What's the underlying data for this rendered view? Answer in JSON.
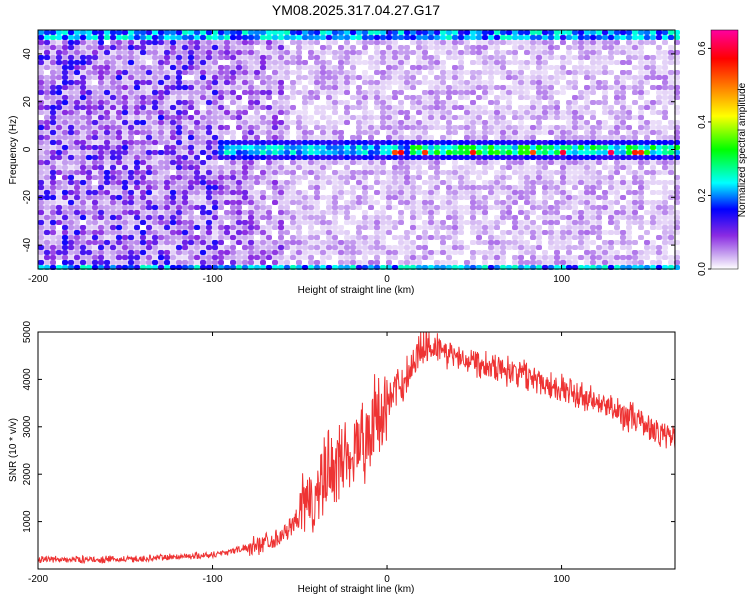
{
  "chart_data": [
    {
      "type": "heatmap",
      "title": "YM08.2025.317.04.27.G17",
      "xlabel": "Height of straight line (km)",
      "ylabel": "Frequency (Hz)",
      "xlim": [
        -200,
        165
      ],
      "ylim": [
        -50,
        50
      ],
      "xticks": [
        -200,
        -100,
        0,
        100
      ],
      "xtick_labels": [
        "-200",
        "-100",
        "0",
        "100"
      ],
      "yticks": [
        -40,
        -20,
        0,
        20,
        40
      ],
      "ytick_labels": [
        "-40",
        "-20",
        "0",
        "20",
        "40"
      ],
      "colorbar": {
        "label": "Normalized spectral amplitude",
        "range": [
          0,
          0.65
        ],
        "ticks": [
          0,
          0.2,
          0.4,
          0.6
        ],
        "tick_labels": [
          "0.0",
          "0.2",
          "0.4",
          "0.6"
        ],
        "colors": [
          "#ffffff",
          "#8a2be2",
          "#0000ff",
          "#00ffff",
          "#00ff00",
          "#ffff00",
          "#ff8000",
          "#ff0000",
          "#ff00a0"
        ]
      },
      "features": [
        {
          "name": "carrier-line",
          "frequency_hz": 0,
          "x_start_km": -100,
          "x_end_km": 165,
          "peak_amplitude": 0.6
        },
        {
          "name": "edge-band-top",
          "frequency_hz": 49
        },
        {
          "name": "edge-band-bottom",
          "frequency_hz": -49
        }
      ]
    },
    {
      "type": "line",
      "xlabel": "Height of straight line (km)",
      "ylabel": "SNR (10 * v/v)",
      "xlim": [
        -200,
        165
      ],
      "ylim": [
        0,
        5000
      ],
      "xticks": [
        -200,
        -100,
        0,
        100
      ],
      "xtick_labels": [
        "-200",
        "-100",
        "0",
        "100"
      ],
      "yticks": [
        1000,
        2000,
        3000,
        4000,
        5000
      ],
      "ytick_labels": [
        "1000",
        "2000",
        "3000",
        "4000",
        "5000"
      ],
      "series": [
        {
          "name": "SNR",
          "color": "#ee3333",
          "x": [
            -200,
            -150,
            -100,
            -80,
            -60,
            -50,
            -40,
            -30,
            -20,
            -10,
            0,
            10,
            20,
            25,
            30,
            40,
            60,
            80,
            100,
            120,
            140,
            160,
            165
          ],
          "values": [
            200,
            200,
            300,
            450,
            700,
            1100,
            1600,
            2200,
            2500,
            2900,
            3500,
            4000,
            4700,
            4800,
            4600,
            4500,
            4300,
            4100,
            3800,
            3500,
            3200,
            2800,
            2800
          ]
        }
      ]
    }
  ]
}
